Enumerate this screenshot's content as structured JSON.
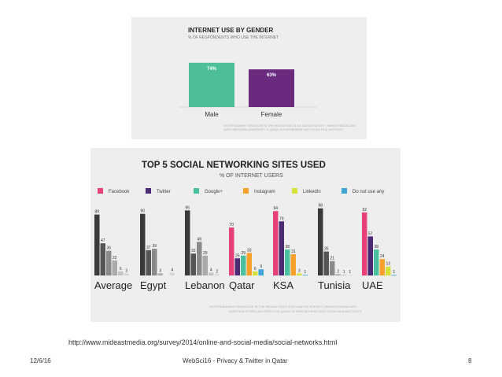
{
  "gender_chart": {
    "title": "INTERNET USE BY GENDER",
    "subtitle": "% OF RESPONDENTS WHO USE THE INTERNET",
    "source_note_1": "ENTERTAINMENT MEDIA USE IN THE MIDDLE EAST: A SIX-NATION SURVEY | MIDEASTMEDIA.ORG",
    "source_note_2": "NORTHWESTERN UNIVERSITY IN QATAR IN PARTNERSHIP WITH DOHA FILM INSTITUTE",
    "colors": {
      "male": "#4dbf98",
      "female": "#6a2a7e"
    }
  },
  "social_chart": {
    "title": "TOP 5 SOCIAL NETWORKING SITES USED",
    "subtitle": "% OF INTERNET USERS",
    "source_note_1": "ENTERTAINMENT MEDIA USE IN THE MIDDLE EAST: A SIX-NATION SURVEY | MIDEASTMEDIA.ORG",
    "source_note_2": "NORTHWESTERN UNIVERSITY IN QATAR IN PARTNERSHIP WITH DOHA FILM INSTITUTE"
  },
  "chart_data": [
    {
      "type": "bar",
      "title": "INTERNET USE BY GENDER",
      "subtitle": "% OF RESPONDENTS WHO USE THE INTERNET",
      "categories": [
        "Male",
        "Female"
      ],
      "values": [
        74,
        63
      ],
      "value_labels": [
        "74%",
        "63%"
      ],
      "ylim": [
        0,
        100
      ],
      "grid": false
    },
    {
      "type": "bar",
      "title": "TOP 5 SOCIAL NETWORKING SITES USED",
      "subtitle": "% OF INTERNET USERS",
      "categories": [
        "Average",
        "Egypt",
        "Lebanon",
        "Qatar",
        "KSA",
        "Tunisia",
        "UAE"
      ],
      "legend_position": "top",
      "ylim": [
        0,
        100
      ],
      "grid": false,
      "series": [
        {
          "name": "Facebook",
          "values": [
            89,
            90,
            95,
            70,
            94,
            98,
            92
          ]
        },
        {
          "name": "Twitter",
          "values": [
            47,
            37,
            32,
            25,
            79,
            35,
            57
          ]
        },
        {
          "name": "Google+",
          "values": [
            36,
            39,
            49,
            29,
            38,
            21,
            38
          ]
        },
        {
          "name": "Instagram",
          "values": [
            22,
            3,
            29,
            33,
            31,
            2,
            24
          ]
        },
        {
          "name": "LinkedIn",
          "values": [
            6,
            0,
            4,
            6,
            3,
            1,
            13
          ]
        },
        {
          "name": "Do not use any",
          "values": [
            3,
            4,
            2,
            9,
            1,
            1,
            1
          ]
        }
      ],
      "series_colors": {
        "Facebook": "#e7417a",
        "Twitter": "#4d2a76",
        "Google+": "#49c1a0",
        "Instagram": "#f6a12b",
        "LinkedIn": "#d7e13a",
        "Do not use any": "#3ea7d8"
      },
      "country_colors": {
        "Average": "#3a3a3a",
        "Egypt": "#3a3a3a",
        "Lebanon": "#3a3a3a",
        "Qatar": "colored",
        "KSA": "colored",
        "Tunisia": "#3a3a3a",
        "UAE": "colored"
      }
    }
  ],
  "footer": {
    "url": "http://www.mideastmedia.org/survey/2014/online-and-social-media/social-networks.html",
    "date": "12/6/16",
    "center": "WebSci16 - Privacy & Twitter in Qatar",
    "page": "8"
  }
}
